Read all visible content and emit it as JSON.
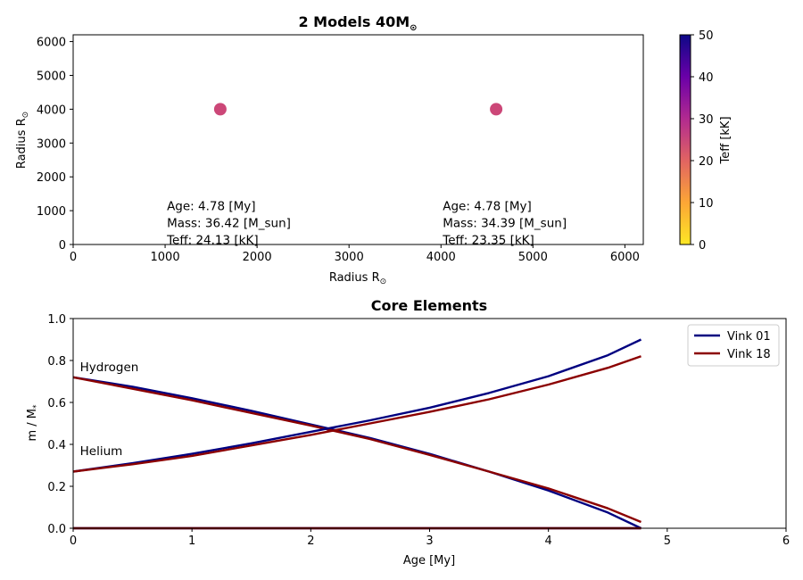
{
  "chart_data": [
    {
      "type": "scatter",
      "title": "2 Models 40M☉",
      "title_main": "2 Models 40M",
      "title_sub": "⊙",
      "xlabel": "Radius R☉",
      "ylabel": "Radius R☉",
      "xlim": [
        0,
        6200
      ],
      "ylim": [
        0,
        6200
      ],
      "xticks": [
        0,
        1000,
        2000,
        3000,
        4000,
        5000,
        6000
      ],
      "yticks": [
        0,
        1000,
        2000,
        3000,
        4000,
        5000,
        6000
      ],
      "grid": false,
      "points": [
        {
          "x": 1600,
          "y": 4000,
          "teff": 24.13,
          "color": "#cc4778"
        },
        {
          "x": 4600,
          "y": 4000,
          "teff": 23.35,
          "color": "#cc4778"
        }
      ],
      "annotations": [
        {
          "x": 1000,
          "y": 1600,
          "lines": [
            "Age: 4.78 [My]",
            "Mass: 36.42 [M_sun]",
            "Teff: 24.13 [kK]"
          ]
        },
        {
          "x": 4000,
          "y": 1600,
          "lines": [
            "Age: 4.78 [My]",
            "Mass: 34.39 [M_sun]",
            "Teff: 23.35 [kK]"
          ]
        }
      ],
      "colorbar": {
        "label": "Teff [kK]",
        "colormap": "plasma",
        "range": [
          0,
          50
        ],
        "ticks": [
          0,
          10,
          20,
          30,
          40,
          50
        ],
        "colors": [
          "#fde725",
          "#fca636",
          "#e16462",
          "#b12a90",
          "#6a00a8",
          "#0d0887"
        ]
      }
    },
    {
      "type": "line",
      "title": "Core Elements",
      "xlabel": "Age [My]",
      "ylabel": "m / M*",
      "xlim": [
        0,
        6
      ],
      "ylim": [
        0,
        1
      ],
      "xticks": [
        0,
        1,
        2,
        3,
        4,
        5,
        6
      ],
      "yticks": [
        0.0,
        0.2,
        0.4,
        0.6,
        0.8,
        1.0
      ],
      "grid": false,
      "legend_position": "top-right",
      "x": [
        0,
        0.5,
        1,
        1.5,
        2,
        2.5,
        3,
        3.5,
        4,
        4.5,
        4.78
      ],
      "series": [
        {
          "name": "Vink 01",
          "element": "hydrogen",
          "color": "#000080",
          "values": [
            0.72,
            0.675,
            0.62,
            0.56,
            0.495,
            0.43,
            0.355,
            0.27,
            0.18,
            0.075,
            0.0
          ]
        },
        {
          "name": "Vink 18",
          "element": "hydrogen",
          "color": "#8b0000",
          "values": [
            0.72,
            0.665,
            0.61,
            0.55,
            0.49,
            0.425,
            0.35,
            0.27,
            0.19,
            0.095,
            0.03
          ]
        },
        {
          "name": "Vink 01",
          "element": "helium",
          "color": "#000080",
          "values": [
            0.27,
            0.31,
            0.355,
            0.405,
            0.46,
            0.515,
            0.575,
            0.645,
            0.725,
            0.825,
            0.9
          ]
        },
        {
          "name": "Vink 18",
          "element": "helium",
          "color": "#8b0000",
          "values": [
            0.27,
            0.305,
            0.345,
            0.395,
            0.445,
            0.5,
            0.555,
            0.615,
            0.685,
            0.765,
            0.82
          ]
        },
        {
          "name": "Vink 01",
          "element": "metals",
          "color": "#000080",
          "values": [
            0,
            0,
            0,
            0,
            0,
            0,
            0,
            0,
            0,
            0,
            0
          ]
        },
        {
          "name": "Vink 18",
          "element": "metals",
          "color": "#8b0000",
          "values": [
            0,
            0,
            0,
            0,
            0,
            0,
            0,
            0,
            0,
            0,
            0
          ]
        }
      ],
      "annotations": [
        {
          "text": "Hydrogen",
          "x": 0.05,
          "y": 0.765
        },
        {
          "text": "Helium",
          "x": 0.05,
          "y": 0.365
        }
      ],
      "legend": [
        {
          "name": "Vink 01",
          "color": "#000080"
        },
        {
          "name": "Vink 18",
          "color": "#8b0000"
        }
      ]
    }
  ]
}
